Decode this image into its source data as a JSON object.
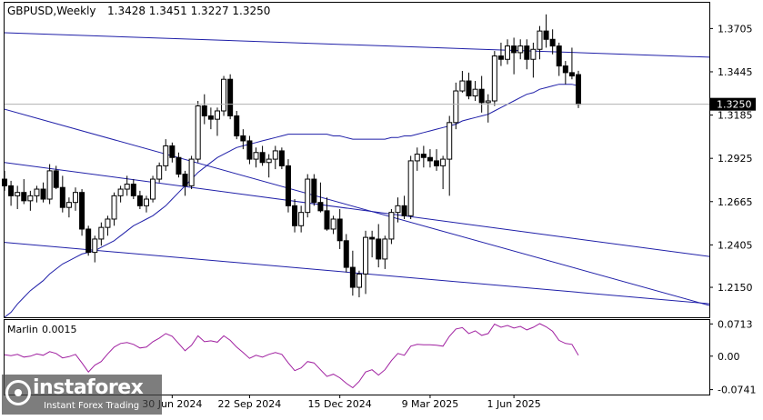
{
  "window": {
    "symbol_title": "GBPUSD,Weekly",
    "ohlc": "1.3428 1.3451 1.3227 1.3250"
  },
  "logo": {
    "name": "instaforex",
    "tagline": "Instant Forex Trading"
  },
  "chart_data": {
    "type": "candlestick",
    "symbol": "GBPUSD",
    "timeframe": "Weekly",
    "ylim": [
      1.197,
      1.386
    ],
    "y_ticks": [
      "1.3705",
      "1.3445",
      "1.3185",
      "1.2925",
      "1.2665",
      "1.2405",
      "1.2150"
    ],
    "current_price": "1.3250",
    "x_ticks": [
      "30 Jun 2024",
      "22 Sep 2024",
      "15 Dec 2024",
      "9 Mar 2025",
      "1 Jun 2025"
    ],
    "colors": {
      "bull": "#ffffff",
      "bear": "#000000",
      "channel": "#1f1fa8",
      "ma": "#1f1fa8",
      "oscillator": "#a020a0",
      "price_label_bg": "#000000"
    },
    "candles": [
      [
        1.28,
        1.285,
        1.273,
        1.276
      ],
      [
        1.276,
        1.279,
        1.264,
        1.27
      ],
      [
        1.27,
        1.276,
        1.262,
        1.272
      ],
      [
        1.272,
        1.28,
        1.265,
        1.267
      ],
      [
        1.267,
        1.273,
        1.261,
        1.27
      ],
      [
        1.27,
        1.276,
        1.266,
        1.274
      ],
      [
        1.274,
        1.278,
        1.266,
        1.268
      ],
      [
        1.268,
        1.289,
        1.265,
        1.285
      ],
      [
        1.285,
        1.288,
        1.274,
        1.275
      ],
      [
        1.275,
        1.282,
        1.26,
        1.263
      ],
      [
        1.263,
        1.269,
        1.257,
        1.266
      ],
      [
        1.266,
        1.275,
        1.261,
        1.272
      ],
      [
        1.272,
        1.274,
        1.246,
        1.25
      ],
      [
        1.25,
        1.252,
        1.234,
        1.236
      ],
      [
        1.236,
        1.246,
        1.23,
        1.244
      ],
      [
        1.244,
        1.254,
        1.24,
        1.251
      ],
      [
        1.251,
        1.258,
        1.246,
        1.256
      ],
      [
        1.256,
        1.272,
        1.252,
        1.27
      ],
      [
        1.27,
        1.276,
        1.266,
        1.274
      ],
      [
        1.274,
        1.282,
        1.27,
        1.277
      ],
      [
        1.277,
        1.28,
        1.268,
        1.27
      ],
      [
        1.27,
        1.273,
        1.262,
        1.264
      ],
      [
        1.264,
        1.27,
        1.26,
        1.268
      ],
      [
        1.268,
        1.282,
        1.266,
        1.28
      ],
      [
        1.28,
        1.29,
        1.278,
        1.288
      ],
      [
        1.288,
        1.304,
        1.285,
        1.3
      ],
      [
        1.3,
        1.302,
        1.29,
        1.293
      ],
      [
        1.293,
        1.296,
        1.281,
        1.283
      ],
      [
        1.283,
        1.285,
        1.27,
        1.276
      ],
      [
        1.276,
        1.294,
        1.274,
        1.292
      ],
      [
        1.292,
        1.327,
        1.29,
        1.324
      ],
      [
        1.324,
        1.331,
        1.313,
        1.318
      ],
      [
        1.318,
        1.323,
        1.31,
        1.316
      ],
      [
        1.316,
        1.323,
        1.306,
        1.321
      ],
      [
        1.321,
        1.342,
        1.318,
        1.34
      ],
      [
        1.34,
        1.343,
        1.316,
        1.318
      ],
      [
        1.318,
        1.321,
        1.304,
        1.306
      ],
      [
        1.306,
        1.31,
        1.298,
        1.303
      ],
      [
        1.303,
        1.306,
        1.289,
        1.292
      ],
      [
        1.292,
        1.299,
        1.287,
        1.296
      ],
      [
        1.296,
        1.3,
        1.288,
        1.29
      ],
      [
        1.29,
        1.295,
        1.281,
        1.292
      ],
      [
        1.292,
        1.3,
        1.286,
        1.297
      ],
      [
        1.297,
        1.299,
        1.286,
        1.288
      ],
      [
        1.288,
        1.292,
        1.26,
        1.264
      ],
      [
        1.264,
        1.268,
        1.248,
        1.252
      ],
      [
        1.252,
        1.264,
        1.248,
        1.26
      ],
      [
        1.26,
        1.283,
        1.257,
        1.28
      ],
      [
        1.28,
        1.283,
        1.264,
        1.266
      ],
      [
        1.266,
        1.278,
        1.26,
        1.261
      ],
      [
        1.261,
        1.269,
        1.249,
        1.25
      ],
      [
        1.25,
        1.258,
        1.247,
        1.256
      ],
      [
        1.256,
        1.262,
        1.238,
        1.243
      ],
      [
        1.243,
        1.247,
        1.224,
        1.227
      ],
      [
        1.227,
        1.237,
        1.21,
        1.215
      ],
      [
        1.215,
        1.225,
        1.209,
        1.223
      ],
      [
        1.223,
        1.249,
        1.211,
        1.245
      ],
      [
        1.245,
        1.249,
        1.233,
        1.244
      ],
      [
        1.244,
        1.253,
        1.227,
        1.232
      ],
      [
        1.232,
        1.246,
        1.226,
        1.244
      ],
      [
        1.244,
        1.262,
        1.241,
        1.26
      ],
      [
        1.26,
        1.269,
        1.254,
        1.264
      ],
      [
        1.264,
        1.27,
        1.256,
        1.258
      ],
      [
        1.258,
        1.294,
        1.256,
        1.291
      ],
      [
        1.291,
        1.299,
        1.285,
        1.295
      ],
      [
        1.295,
        1.3,
        1.287,
        1.293
      ],
      [
        1.293,
        1.298,
        1.287,
        1.291
      ],
      [
        1.291,
        1.298,
        1.285,
        1.288
      ],
      [
        1.288,
        1.294,
        1.274,
        1.292
      ],
      [
        1.292,
        1.318,
        1.27,
        1.314
      ],
      [
        1.314,
        1.338,
        1.31,
        1.333
      ],
      [
        1.333,
        1.345,
        1.332,
        1.339
      ],
      [
        1.339,
        1.344,
        1.328,
        1.33
      ],
      [
        1.33,
        1.339,
        1.327,
        1.334
      ],
      [
        1.334,
        1.342,
        1.32,
        1.326
      ],
      [
        1.326,
        1.331,
        1.314,
        1.327
      ],
      [
        1.327,
        1.357,
        1.324,
        1.354
      ],
      [
        1.354,
        1.362,
        1.348,
        1.352
      ],
      [
        1.352,
        1.364,
        1.349,
        1.36
      ],
      [
        1.36,
        1.365,
        1.343,
        1.356
      ],
      [
        1.356,
        1.364,
        1.352,
        1.36
      ],
      [
        1.36,
        1.364,
        1.346,
        1.352
      ],
      [
        1.352,
        1.362,
        1.341,
        1.358
      ],
      [
        1.358,
        1.372,
        1.352,
        1.369
      ],
      [
        1.369,
        1.379,
        1.359,
        1.364
      ],
      [
        1.364,
        1.37,
        1.355,
        1.36
      ],
      [
        1.36,
        1.362,
        1.342,
        1.348
      ],
      [
        1.348,
        1.351,
        1.337,
        1.344
      ],
      [
        1.344,
        1.359,
        1.34,
        1.342
      ],
      [
        1.3428,
        1.3451,
        1.3227,
        1.325
      ]
    ],
    "moving_average": [
      1.197,
      1.2,
      1.205,
      1.209,
      1.213,
      1.216,
      1.219,
      1.223,
      1.226,
      1.229,
      1.231,
      1.233,
      1.235,
      1.236,
      1.237,
      1.239,
      1.241,
      1.243,
      1.246,
      1.249,
      1.252,
      1.254,
      1.256,
      1.258,
      1.261,
      1.264,
      1.268,
      1.272,
      1.276,
      1.28,
      1.284,
      1.287,
      1.29,
      1.293,
      1.295,
      1.297,
      1.299,
      1.3,
      1.301,
      1.302,
      1.303,
      1.304,
      1.305,
      1.306,
      1.307,
      1.307,
      1.307,
      1.307,
      1.307,
      1.307,
      1.307,
      1.306,
      1.306,
      1.305,
      1.304,
      1.304,
      1.304,
      1.304,
      1.304,
      1.304,
      1.305,
      1.305,
      1.306,
      1.306,
      1.307,
      1.308,
      1.309,
      1.31,
      1.311,
      1.312,
      1.313,
      1.315,
      1.316,
      1.317,
      1.318,
      1.319,
      1.321,
      1.323,
      1.325,
      1.327,
      1.329,
      1.331,
      1.332,
      1.334,
      1.335,
      1.336,
      1.337,
      1.337,
      1.337,
      1.336
    ],
    "channel_lines": [
      [
        [
          0,
          1.368
        ],
        [
          89,
          1.356
        ]
      ],
      [
        [
          0,
          1.322
        ],
        [
          89,
          1.226
        ]
      ],
      [
        [
          0,
          1.29
        ],
        [
          89,
          1.244
        ]
      ],
      [
        [
          0,
          1.242
        ],
        [
          89,
          1.212
        ]
      ]
    ],
    "indicator": {
      "name": "Marlin",
      "value": "0.0015",
      "ylim": [
        -0.085,
        0.08
      ],
      "y_ticks": [
        "0.0713",
        "0.00",
        "-0.0741"
      ],
      "values": [
        0.003,
        0.001,
        0.004,
        -0.002,
        0.0,
        0.005,
        0.002,
        0.01,
        0.006,
        -0.004,
        -0.001,
        0.004,
        -0.015,
        -0.035,
        -0.02,
        -0.012,
        0.005,
        0.02,
        0.028,
        0.03,
        0.026,
        0.018,
        0.02,
        0.032,
        0.04,
        0.05,
        0.044,
        0.028,
        0.012,
        0.024,
        0.045,
        0.032,
        0.034,
        0.031,
        0.045,
        0.035,
        0.02,
        0.008,
        -0.005,
        0.002,
        -0.002,
        0.004,
        0.008,
        0.004,
        -0.015,
        -0.032,
        -0.026,
        -0.012,
        -0.015,
        -0.03,
        -0.045,
        -0.04,
        -0.048,
        -0.06,
        -0.07,
        -0.056,
        -0.035,
        -0.03,
        -0.042,
        -0.03,
        -0.01,
        0.006,
        0.002,
        0.022,
        0.026,
        0.025,
        0.025,
        0.024,
        0.022,
        0.044,
        0.06,
        0.063,
        0.05,
        0.056,
        0.046,
        0.05,
        0.071,
        0.064,
        0.068,
        0.062,
        0.066,
        0.058,
        0.064,
        0.072,
        0.065,
        0.055,
        0.035,
        0.028,
        0.026,
        0.002
      ]
    }
  }
}
